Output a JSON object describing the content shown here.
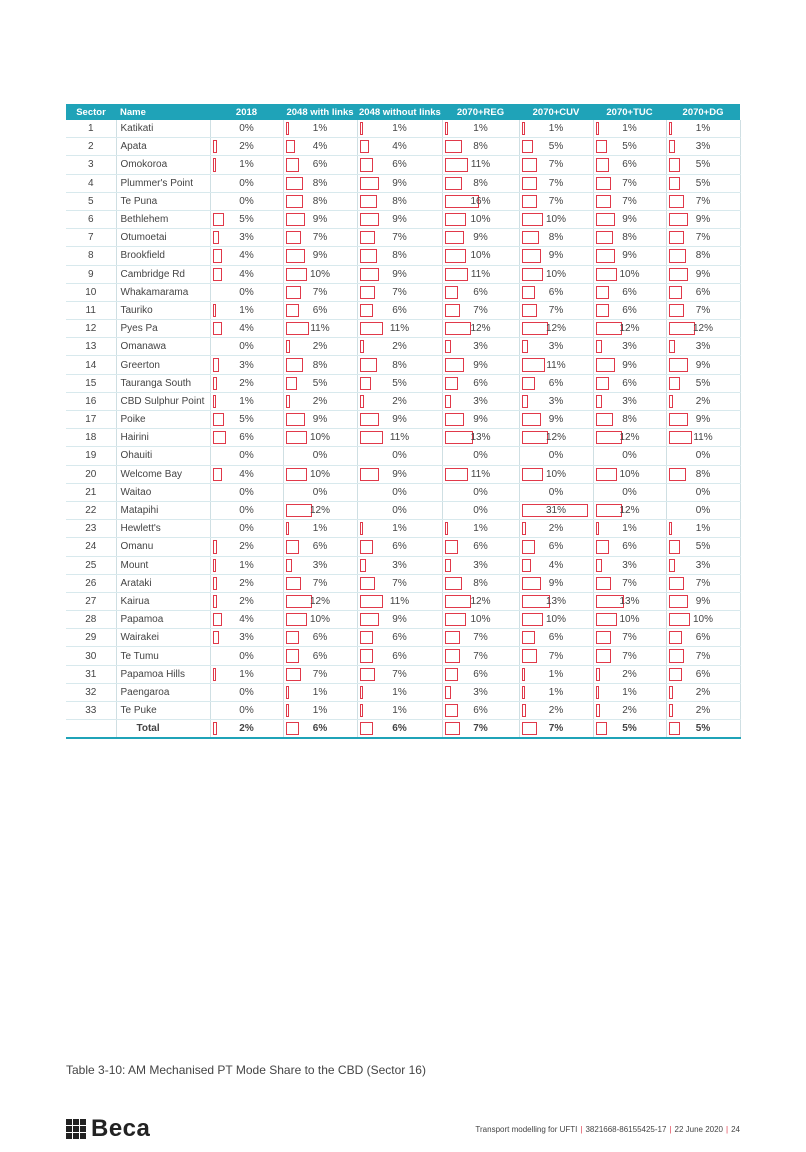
{
  "table": {
    "headers": [
      "Sector",
      "Name",
      "2018",
      "2048 with links",
      "2048 without links",
      "2070+REG",
      "2070+CUV",
      "2070+TUC",
      "2070+DG"
    ],
    "rows": [
      {
        "sector": "1",
        "name": "Katikati",
        "values": [
          "0%",
          "1%",
          "1%",
          "1%",
          "1%",
          "1%",
          "1%"
        ]
      },
      {
        "sector": "2",
        "name": "Apata",
        "values": [
          "2%",
          "4%",
          "4%",
          "8%",
          "5%",
          "5%",
          "3%"
        ]
      },
      {
        "sector": "3",
        "name": "Omokoroa",
        "values": [
          "1%",
          "6%",
          "6%",
          "11%",
          "7%",
          "6%",
          "5%"
        ]
      },
      {
        "sector": "4",
        "name": "Plummer's Point",
        "values": [
          "0%",
          "8%",
          "9%",
          "8%",
          "7%",
          "7%",
          "5%"
        ]
      },
      {
        "sector": "5",
        "name": "Te Puna",
        "values": [
          "0%",
          "8%",
          "8%",
          "16%",
          "7%",
          "7%",
          "7%"
        ]
      },
      {
        "sector": "6",
        "name": "Bethlehem",
        "values": [
          "5%",
          "9%",
          "9%",
          "10%",
          "10%",
          "9%",
          "9%"
        ]
      },
      {
        "sector": "7",
        "name": "Otumoetai",
        "values": [
          "3%",
          "7%",
          "7%",
          "9%",
          "8%",
          "8%",
          "7%"
        ]
      },
      {
        "sector": "8",
        "name": "Brookfield",
        "values": [
          "4%",
          "9%",
          "8%",
          "10%",
          "9%",
          "9%",
          "8%"
        ]
      },
      {
        "sector": "9",
        "name": "Cambridge Rd",
        "values": [
          "4%",
          "10%",
          "9%",
          "11%",
          "10%",
          "10%",
          "9%"
        ]
      },
      {
        "sector": "10",
        "name": "Whakamarama",
        "values": [
          "0%",
          "7%",
          "7%",
          "6%",
          "6%",
          "6%",
          "6%"
        ]
      },
      {
        "sector": "11",
        "name": "Tauriko",
        "values": [
          "1%",
          "6%",
          "6%",
          "7%",
          "7%",
          "6%",
          "7%"
        ]
      },
      {
        "sector": "12",
        "name": "Pyes Pa",
        "values": [
          "4%",
          "11%",
          "11%",
          "12%",
          "12%",
          "12%",
          "12%"
        ]
      },
      {
        "sector": "13",
        "name": "Omanawa",
        "values": [
          "0%",
          "2%",
          "2%",
          "3%",
          "3%",
          "3%",
          "3%"
        ]
      },
      {
        "sector": "14",
        "name": "Greerton",
        "values": [
          "3%",
          "8%",
          "8%",
          "9%",
          "11%",
          "9%",
          "9%"
        ]
      },
      {
        "sector": "15",
        "name": "Tauranga South",
        "values": [
          "2%",
          "5%",
          "5%",
          "6%",
          "6%",
          "6%",
          "5%"
        ]
      },
      {
        "sector": "16",
        "name": "CBD Sulphur Point",
        "values": [
          "1%",
          "2%",
          "2%",
          "3%",
          "3%",
          "3%",
          "2%"
        ]
      },
      {
        "sector": "17",
        "name": "Poike",
        "values": [
          "5%",
          "9%",
          "9%",
          "9%",
          "9%",
          "8%",
          "9%"
        ]
      },
      {
        "sector": "18",
        "name": "Hairini",
        "values": [
          "6%",
          "10%",
          "11%",
          "13%",
          "12%",
          "12%",
          "11%"
        ]
      },
      {
        "sector": "19",
        "name": "Ohauiti",
        "values": [
          "0%",
          "0%",
          "0%",
          "0%",
          "0%",
          "0%",
          "0%"
        ]
      },
      {
        "sector": "20",
        "name": "Welcome Bay",
        "values": [
          "4%",
          "10%",
          "9%",
          "11%",
          "10%",
          "10%",
          "8%"
        ]
      },
      {
        "sector": "21",
        "name": "Waitao",
        "values": [
          "0%",
          "0%",
          "0%",
          "0%",
          "0%",
          "0%",
          "0%"
        ]
      },
      {
        "sector": "22",
        "name": "Matapihi",
        "values": [
          "0%",
          "12%",
          "0%",
          "0%",
          "31%",
          "12%",
          "0%"
        ]
      },
      {
        "sector": "23",
        "name": "Hewlett's",
        "values": [
          "0%",
          "1%",
          "1%",
          "1%",
          "2%",
          "1%",
          "1%"
        ]
      },
      {
        "sector": "24",
        "name": "Omanu",
        "values": [
          "2%",
          "6%",
          "6%",
          "6%",
          "6%",
          "6%",
          "5%"
        ]
      },
      {
        "sector": "25",
        "name": "Mount",
        "values": [
          "1%",
          "3%",
          "3%",
          "3%",
          "4%",
          "3%",
          "3%"
        ]
      },
      {
        "sector": "26",
        "name": "Arataki",
        "values": [
          "2%",
          "7%",
          "7%",
          "8%",
          "9%",
          "7%",
          "7%"
        ]
      },
      {
        "sector": "27",
        "name": "Kairua",
        "values": [
          "2%",
          "12%",
          "11%",
          "12%",
          "13%",
          "13%",
          "9%"
        ]
      },
      {
        "sector": "28",
        "name": "Papamoa",
        "values": [
          "4%",
          "10%",
          "9%",
          "10%",
          "10%",
          "10%",
          "10%"
        ]
      },
      {
        "sector": "29",
        "name": "Wairakei",
        "values": [
          "3%",
          "6%",
          "6%",
          "7%",
          "6%",
          "7%",
          "6%"
        ]
      },
      {
        "sector": "30",
        "name": "Te Tumu",
        "values": [
          "0%",
          "6%",
          "6%",
          "7%",
          "7%",
          "7%",
          "7%"
        ]
      },
      {
        "sector": "31",
        "name": "Papamoa Hills",
        "values": [
          "1%",
          "7%",
          "7%",
          "6%",
          "1%",
          "2%",
          "6%"
        ]
      },
      {
        "sector": "32",
        "name": "Paengaroa",
        "values": [
          "0%",
          "1%",
          "1%",
          "3%",
          "1%",
          "1%",
          "2%"
        ]
      },
      {
        "sector": "33",
        "name": "Te Puke",
        "values": [
          "0%",
          "1%",
          "1%",
          "6%",
          "2%",
          "2%",
          "2%"
        ]
      }
    ],
    "total": {
      "label": "Total",
      "values": [
        "2%",
        "6%",
        "6%",
        "7%",
        "7%",
        "5%",
        "5%"
      ]
    }
  },
  "caption": "Table 3-10: AM Mechanised PT Mode Share to the CBD (Sector 16)",
  "footer": {
    "logo_text": "Beca",
    "doc_title": "Transport modelling for UFTI",
    "doc_number": "3821668-86155425-17",
    "date": "22 June 2020",
    "page": "24"
  },
  "colors": {
    "header_bg": "#1fa3b8",
    "bar_outline": "#e0394a"
  }
}
